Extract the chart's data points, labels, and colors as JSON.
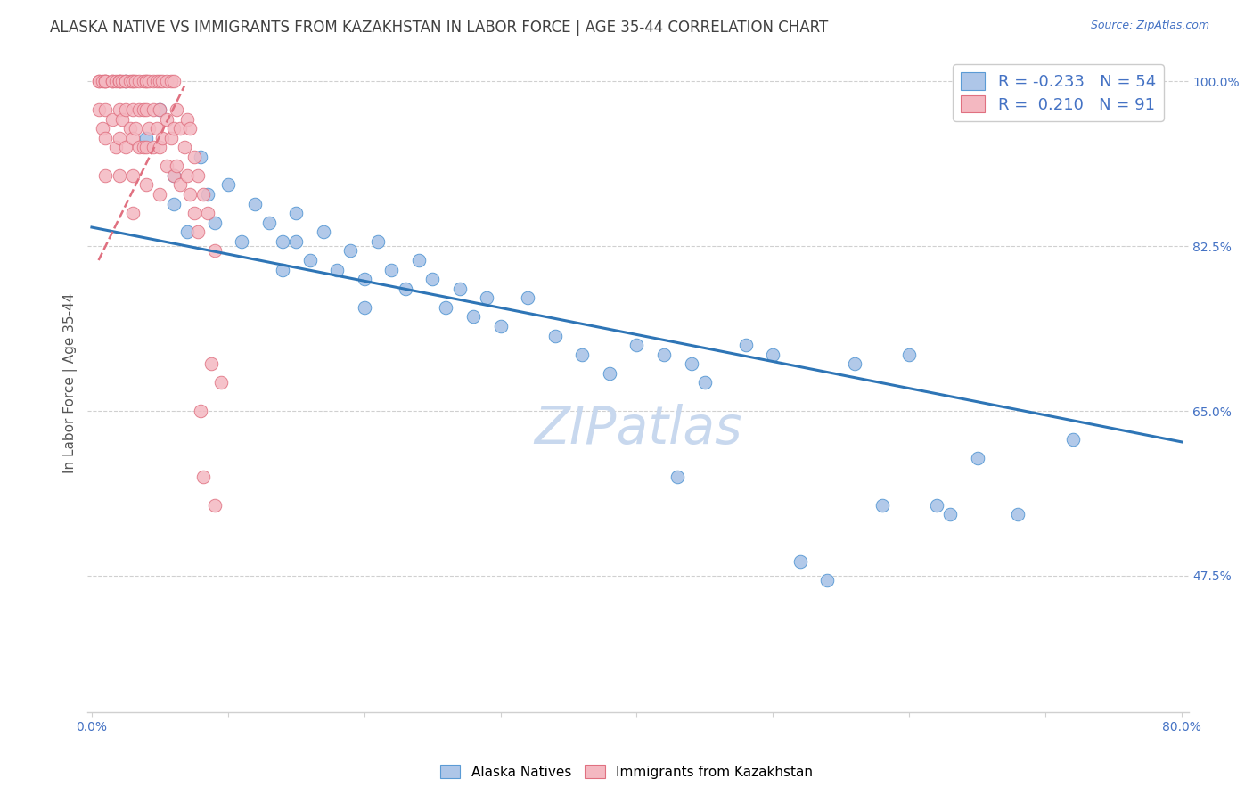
{
  "title": "ALASKA NATIVE VS IMMIGRANTS FROM KAZAKHSTAN IN LABOR FORCE | AGE 35-44 CORRELATION CHART",
  "source": "Source: ZipAtlas.com",
  "ylabel": "In Labor Force | Age 35-44",
  "xlim": [
    0.0,
    0.8
  ],
  "ylim": [
    0.33,
    1.03
  ],
  "y_ticks_right": [
    0.475,
    0.65,
    0.825,
    1.0
  ],
  "y_tick_labels_right": [
    "47.5%",
    "65.0%",
    "82.5%",
    "100.0%"
  ],
  "blue_color": "#aec6e8",
  "blue_edge_color": "#5b9bd5",
  "pink_color": "#f4b8c1",
  "pink_edge_color": "#e07080",
  "blue_line_color": "#2e75b6",
  "pink_line_color": "#c9607a",
  "legend_R_blue": "-0.233",
  "legend_N_blue": "54",
  "legend_R_pink": "0.210",
  "legend_N_pink": "91",
  "blue_line_x0": 0.0,
  "blue_line_x1": 0.8,
  "blue_line_y0": 0.845,
  "blue_line_y1": 0.617,
  "pink_line_x0": 0.005,
  "pink_line_x1": 0.068,
  "pink_line_y0": 0.81,
  "pink_line_y1": 0.995,
  "watermark": "ZIPatlas",
  "watermark_color": "#c8d8ee",
  "axis_color": "#4472c4",
  "title_color": "#404040",
  "grid_color": "#d0d0d0",
  "blue_scatter_x": [
    0.025,
    0.04,
    0.05,
    0.06,
    0.06,
    0.07,
    0.08,
    0.085,
    0.09,
    0.1,
    0.11,
    0.12,
    0.13,
    0.14,
    0.14,
    0.15,
    0.15,
    0.16,
    0.17,
    0.18,
    0.19,
    0.2,
    0.2,
    0.21,
    0.22,
    0.23,
    0.24,
    0.25,
    0.26,
    0.27,
    0.28,
    0.29,
    0.3,
    0.32,
    0.34,
    0.36,
    0.38,
    0.4,
    0.42,
    0.43,
    0.44,
    0.45,
    0.48,
    0.5,
    0.52,
    0.54,
    0.56,
    0.58,
    0.6,
    0.62,
    0.63,
    0.65,
    0.68,
    0.72
  ],
  "blue_scatter_y": [
    1.0,
    0.94,
    0.97,
    0.9,
    0.87,
    0.84,
    0.92,
    0.88,
    0.85,
    0.89,
    0.83,
    0.87,
    0.85,
    0.83,
    0.8,
    0.86,
    0.83,
    0.81,
    0.84,
    0.8,
    0.82,
    0.79,
    0.76,
    0.83,
    0.8,
    0.78,
    0.81,
    0.79,
    0.76,
    0.78,
    0.75,
    0.77,
    0.74,
    0.77,
    0.73,
    0.71,
    0.69,
    0.72,
    0.71,
    0.58,
    0.7,
    0.68,
    0.72,
    0.71,
    0.49,
    0.47,
    0.7,
    0.55,
    0.71,
    0.55,
    0.54,
    0.6,
    0.54,
    0.62
  ],
  "pink_scatter_x": [
    0.005,
    0.005,
    0.005,
    0.008,
    0.008,
    0.01,
    0.01,
    0.01,
    0.01,
    0.01,
    0.01,
    0.015,
    0.015,
    0.015,
    0.018,
    0.018,
    0.02,
    0.02,
    0.02,
    0.02,
    0.02,
    0.02,
    0.022,
    0.022,
    0.025,
    0.025,
    0.025,
    0.025,
    0.028,
    0.028,
    0.03,
    0.03,
    0.03,
    0.03,
    0.03,
    0.03,
    0.032,
    0.032,
    0.035,
    0.035,
    0.035,
    0.038,
    0.038,
    0.038,
    0.04,
    0.04,
    0.04,
    0.04,
    0.04,
    0.042,
    0.042,
    0.045,
    0.045,
    0.045,
    0.048,
    0.048,
    0.05,
    0.05,
    0.05,
    0.05,
    0.052,
    0.052,
    0.055,
    0.055,
    0.055,
    0.058,
    0.058,
    0.06,
    0.06,
    0.06,
    0.062,
    0.062,
    0.065,
    0.065,
    0.068,
    0.07,
    0.07,
    0.072,
    0.072,
    0.075,
    0.075,
    0.078,
    0.078,
    0.08,
    0.082,
    0.082,
    0.085,
    0.088,
    0.09,
    0.09,
    0.095
  ],
  "pink_scatter_y": [
    1.0,
    1.0,
    0.97,
    1.0,
    0.95,
    1.0,
    1.0,
    1.0,
    0.97,
    0.94,
    0.9,
    1.0,
    1.0,
    0.96,
    1.0,
    0.93,
    1.0,
    1.0,
    1.0,
    0.97,
    0.94,
    0.9,
    1.0,
    0.96,
    1.0,
    1.0,
    0.97,
    0.93,
    1.0,
    0.95,
    1.0,
    1.0,
    0.97,
    0.94,
    0.9,
    0.86,
    1.0,
    0.95,
    1.0,
    0.97,
    0.93,
    1.0,
    0.97,
    0.93,
    1.0,
    1.0,
    0.97,
    0.93,
    0.89,
    1.0,
    0.95,
    1.0,
    0.97,
    0.93,
    1.0,
    0.95,
    1.0,
    0.97,
    0.93,
    0.88,
    1.0,
    0.94,
    1.0,
    0.96,
    0.91,
    1.0,
    0.94,
    1.0,
    0.95,
    0.9,
    0.97,
    0.91,
    0.95,
    0.89,
    0.93,
    0.96,
    0.9,
    0.95,
    0.88,
    0.92,
    0.86,
    0.9,
    0.84,
    0.65,
    0.88,
    0.58,
    0.86,
    0.7,
    0.82,
    0.55,
    0.68
  ]
}
